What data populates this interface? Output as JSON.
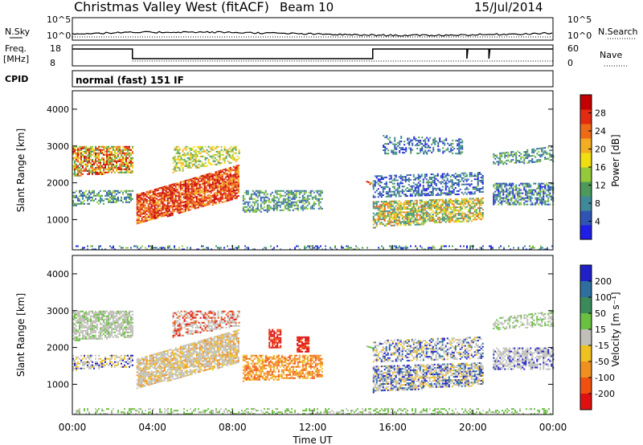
{
  "header": {
    "title": "Christmas Valley West (fitACF)",
    "beam": "Beam 10",
    "date": "15/Jul/2014"
  },
  "panels": {
    "nsky": {
      "label": "N.Sky",
      "right_label": "N.Search",
      "left_ticks": [
        "10^5",
        "10^0"
      ],
      "right_ticks": [
        "10^5",
        "10^0"
      ]
    },
    "freq": {
      "label_line1": "Freq.",
      "label_line2": "[MHz]",
      "right_label": "Nave",
      "left_ticks": [
        "18",
        "8"
      ],
      "right_ticks": [
        "60",
        "0"
      ]
    },
    "cpid": {
      "label": "CPID",
      "text": "normal (fast) 151 IF"
    }
  },
  "chart_data": [
    {
      "type": "heatmap",
      "name": "power",
      "ylabel": "Slant Range [km]",
      "ylim": [
        180,
        4500
      ],
      "y_ticks": [
        1000,
        2000,
        3000,
        4000
      ],
      "colorbar": {
        "label": "Power [dB]",
        "ticks": [
          4,
          8,
          12,
          16,
          20,
          24,
          28
        ],
        "colors": [
          "#1e1ee6",
          "#2f55b4",
          "#3f8a9a",
          "#4b9a5a",
          "#93c93a",
          "#f0df10",
          "#f3ad22",
          "#ed6a16",
          "#e22b10",
          "#c50000"
        ]
      }
    },
    {
      "type": "heatmap",
      "name": "velocity",
      "ylabel": "Slant Range [km]",
      "ylim": [
        180,
        4500
      ],
      "y_ticks": [
        1000,
        2000,
        3000,
        4000
      ],
      "xlabel": "Time UT",
      "x_ticks": [
        "00:00",
        "04:00",
        "08:00",
        "12:00",
        "16:00",
        "20:00",
        "00:00"
      ],
      "colorbar": {
        "label": "Velocity [m s⁻¹]",
        "ticks": [
          "200",
          "100",
          "50",
          "15",
          "-15",
          "-50",
          "-100",
          "-200"
        ],
        "colors": [
          "#2020c8",
          "#2f6fa0",
          "#3a8a5a",
          "#6ac040",
          "#c0c0b8",
          "#f0c020",
          "#f09020",
          "#f05010",
          "#e01010"
        ]
      }
    }
  ]
}
